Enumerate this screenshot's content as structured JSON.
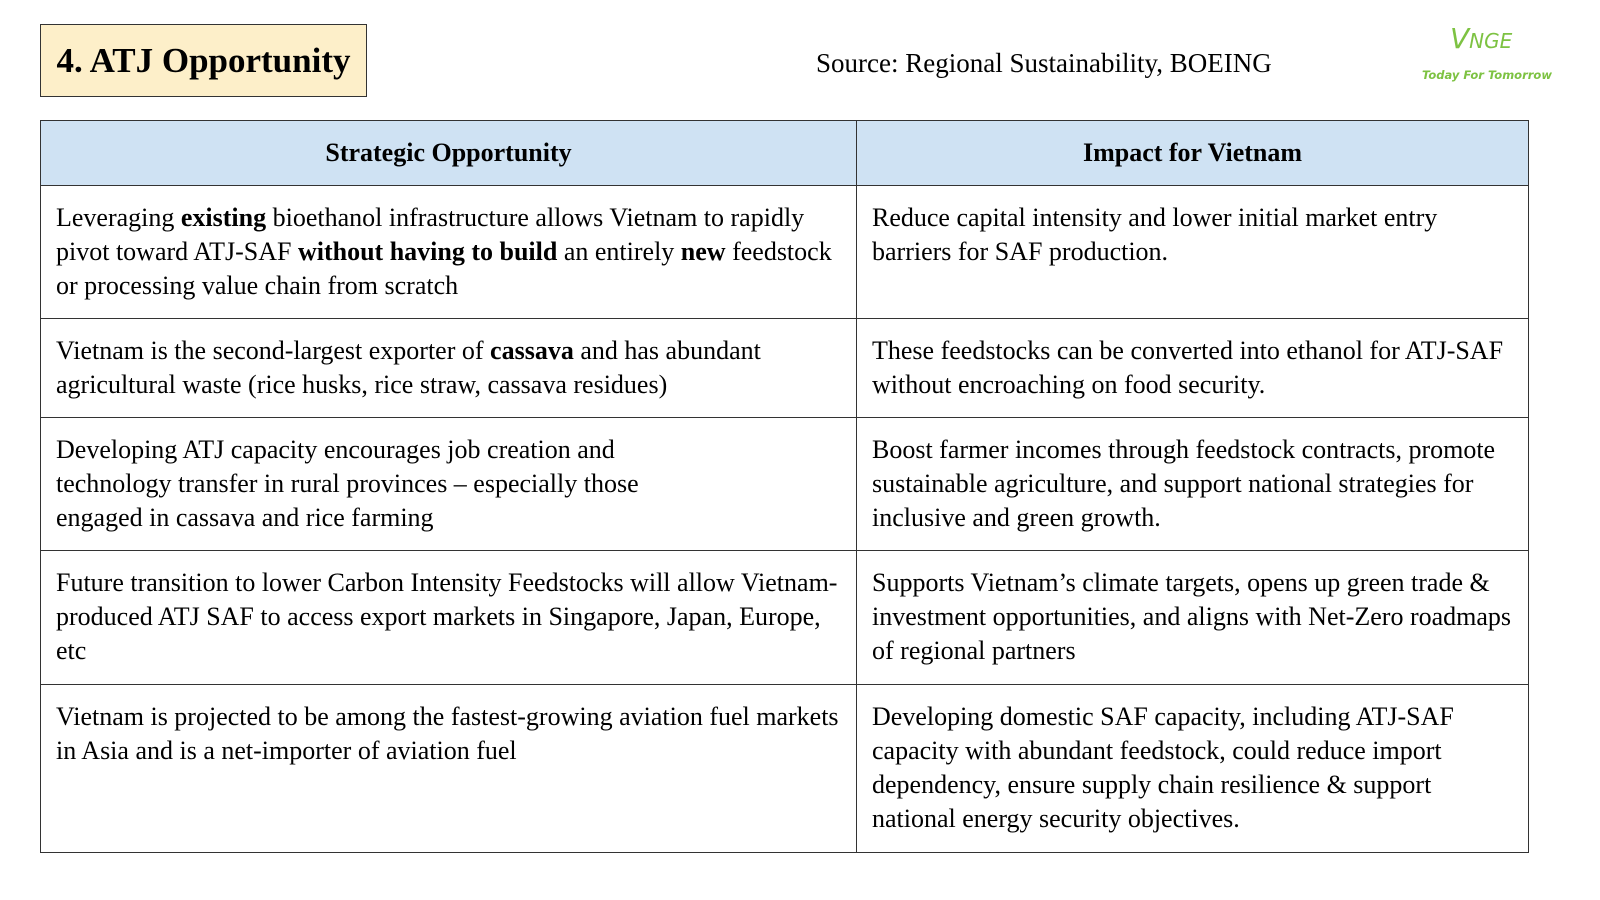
{
  "title": "4. ATJ Opportunity",
  "source": "Source: Regional Sustainability, BOEING",
  "logo": {
    "mark": "V",
    "mark_rest": "NGE",
    "tagline": "Today For Tomorrow",
    "color": "#7dc242"
  },
  "table": {
    "headers": [
      "Strategic Opportunity",
      "Impact for Vietnam"
    ],
    "rows": [
      {
        "opportunity": [
          {
            "text": "Leveraging "
          },
          {
            "text": "existing",
            "bold": true
          },
          {
            "text": " bioethanol infrastructure allows Vietnam to rapidly pivot toward ATJ-SAF "
          },
          {
            "text": "without having to build",
            "bold": true
          },
          {
            "text": " an entirely "
          },
          {
            "text": "new",
            "bold": true
          },
          {
            "text": " feedstock or processing value chain from scratch"
          }
        ],
        "impact": [
          {
            "text": "Reduce capital intensity and lower initial market entry barriers for SAF production."
          }
        ]
      },
      {
        "opportunity": [
          {
            "text": "Vietnam is the second-largest exporter of "
          },
          {
            "text": "cassava",
            "bold": true
          },
          {
            "text": " and has abundant agricultural waste (rice husks, rice straw, cassava residues)"
          }
        ],
        "impact": [
          {
            "text": "These feedstocks can be converted into ethanol for ATJ-SAF without encroaching on food security."
          }
        ]
      },
      {
        "opportunity": [
          {
            "text": "Developing ATJ capacity encourages job creation and\ntechnology transfer in rural provinces – especially those\nengaged in cassava and rice farming"
          }
        ],
        "impact": [
          {
            "text": "Boost farmer incomes through feedstock contracts, promote sustainable agriculture, and support national strategies for inclusive and green growth."
          }
        ]
      },
      {
        "opportunity": [
          {
            "text": "Future transition to lower Carbon Intensity Feedstocks will allow Vietnam-produced ATJ SAF to access export markets in Singapore, Japan, Europe, etc"
          }
        ],
        "impact": [
          {
            "text": "Supports Vietnam’s climate targets, opens up green trade & investment opportunities, and aligns with Net-Zero roadmaps of regional partners"
          }
        ]
      },
      {
        "opportunity": [
          {
            "text": "Vietnam is projected to be among the fastest-growing aviation fuel markets in Asia and is a net-importer of aviation fuel"
          }
        ],
        "impact": [
          {
            "text": "Developing domestic SAF capacity, including ATJ-SAF capacity with abundant feedstock, could reduce import dependency, ensure supply chain resilience & support national energy security objectives."
          }
        ]
      }
    ]
  }
}
